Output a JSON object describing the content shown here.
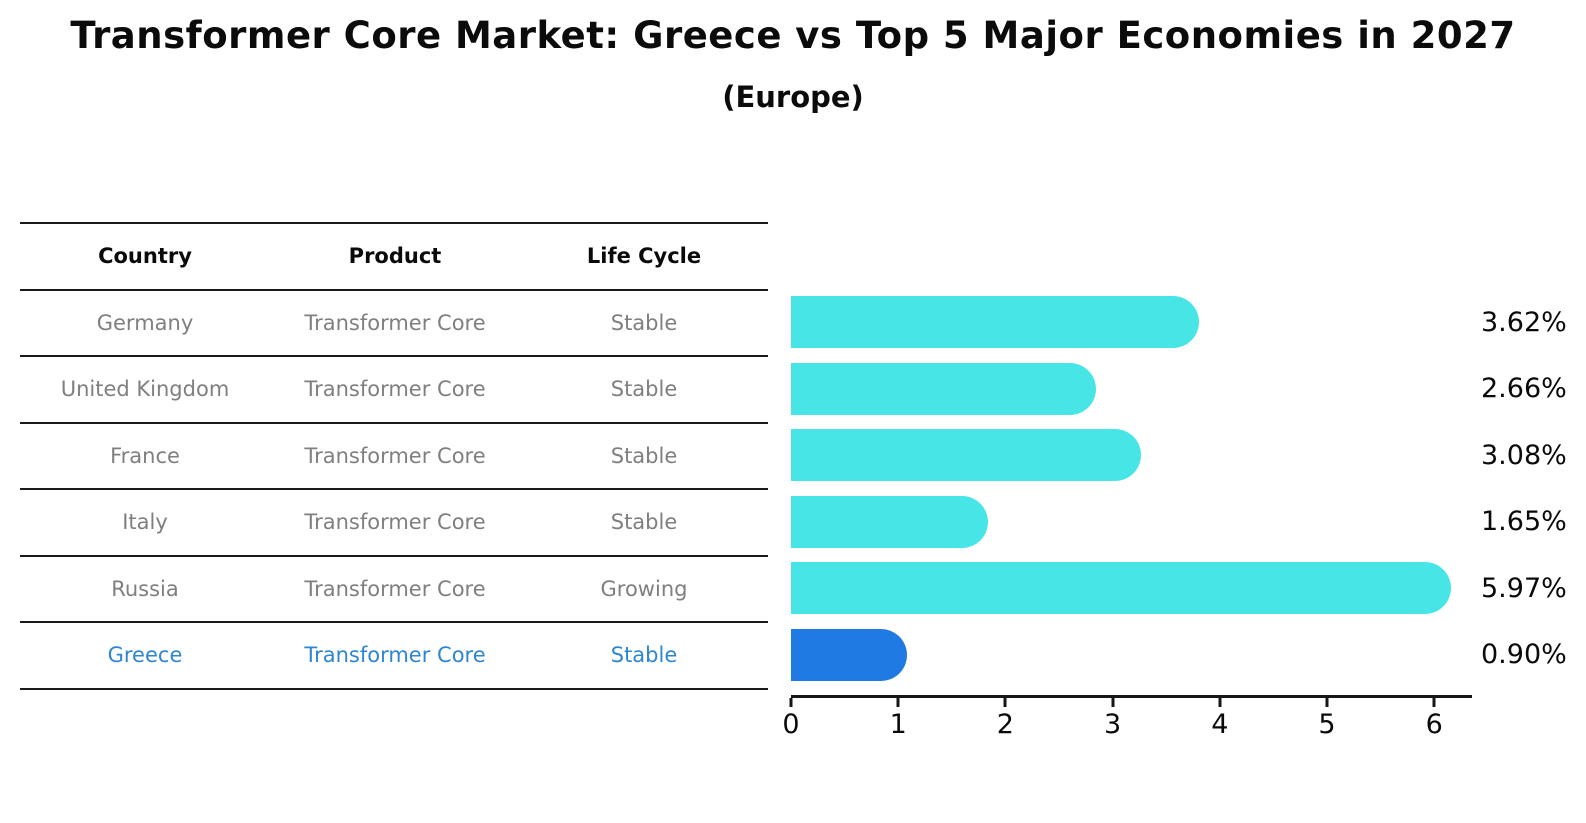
{
  "title": "Transformer Core Market: Greece vs Top 5 Major Economies in 2027",
  "subtitle": "(Europe)",
  "table": {
    "headers": {
      "country": "Country",
      "product": "Product",
      "life_cycle": "Life Cycle"
    },
    "rows": [
      {
        "country": "Germany",
        "product": "Transformer Core",
        "life_cycle": "Stable"
      },
      {
        "country": "United Kingdom",
        "product": "Transformer Core",
        "life_cycle": "Stable"
      },
      {
        "country": "France",
        "product": "Transformer Core",
        "life_cycle": "Stable"
      },
      {
        "country": "Italy",
        "product": "Transformer Core",
        "life_cycle": "Stable"
      },
      {
        "country": "Russia",
        "product": "Transformer Core",
        "life_cycle": "Growing"
      },
      {
        "country": "Greece",
        "product": "Transformer Core",
        "life_cycle": "Stable"
      }
    ],
    "highlight_row": "Greece"
  },
  "chart_data": {
    "type": "bar",
    "orientation": "horizontal",
    "title": "Transformer Core Market: Greece vs Top 5 Major Economies in 2027 (Europe)",
    "categories": [
      "Germany",
      "United Kingdom",
      "France",
      "Italy",
      "Russia",
      "Greece"
    ],
    "values": [
      3.62,
      2.66,
      3.08,
      1.65,
      5.97,
      0.9
    ],
    "value_labels": [
      "3.62%",
      "2.66%",
      "3.08%",
      "1.65%",
      "5.97%",
      "0.90%"
    ],
    "x_ticks": [
      "0",
      "1",
      "2",
      "3",
      "4",
      "5",
      "6"
    ],
    "xlim": [
      0,
      6.35
    ],
    "xlabel": "",
    "ylabel": "",
    "grid": false,
    "legend": "none",
    "bar_color": "#48E5E7",
    "highlight_color": "#1F7BE3",
    "highlight_index": 5
  },
  "colors": {
    "row_text": "#7f7f7f",
    "highlight_text": "#2e86d1",
    "header_text": "#0a0a0a",
    "line": "#161616",
    "value_label_text": "#0a0a0a"
  }
}
